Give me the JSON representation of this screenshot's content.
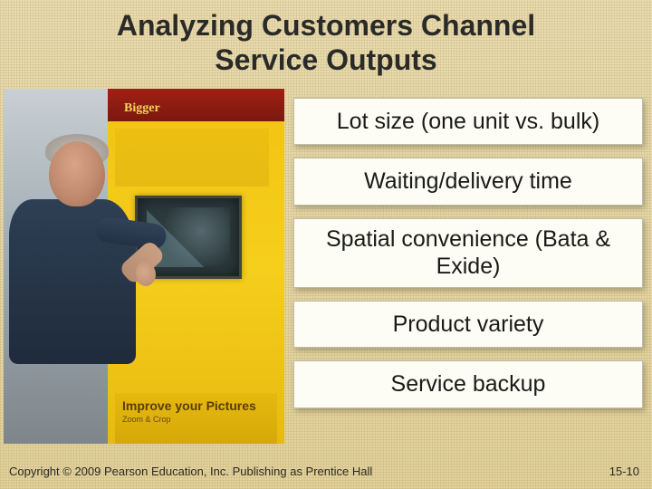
{
  "title_line1": "Analyzing Customers Channel",
  "title_line2": "Service Outputs",
  "bullets": [
    "Lot size (one unit vs. bulk)",
    "Waiting/delivery time",
    "Spatial convenience (Bata & Exide)",
    "Product variety",
    "Service backup"
  ],
  "kiosk": {
    "red_text": "Bigger",
    "lower_title": "Improve your Pictures",
    "lower_sub": "Zoom & Crop"
  },
  "footer": {
    "copyright": "Copyright © 2009 Pearson Education, Inc.  Publishing as Prentice Hall",
    "pagenum": "15-10"
  },
  "colors": {
    "slide_bg": "#e6d8a6",
    "bullet_bg": "#fdfdf6",
    "bullet_border": "#bdbda6",
    "kiosk_yellow": "#f2c312",
    "kiosk_red": "#8a1c10",
    "shirt": "#2e3f54"
  },
  "layout": {
    "slide_w": 720,
    "slide_h": 540,
    "photo_w": 310,
    "photo_h": 392,
    "title_fontsize": 32,
    "bullet_fontsize": 25,
    "footer_fontsize": 13
  }
}
